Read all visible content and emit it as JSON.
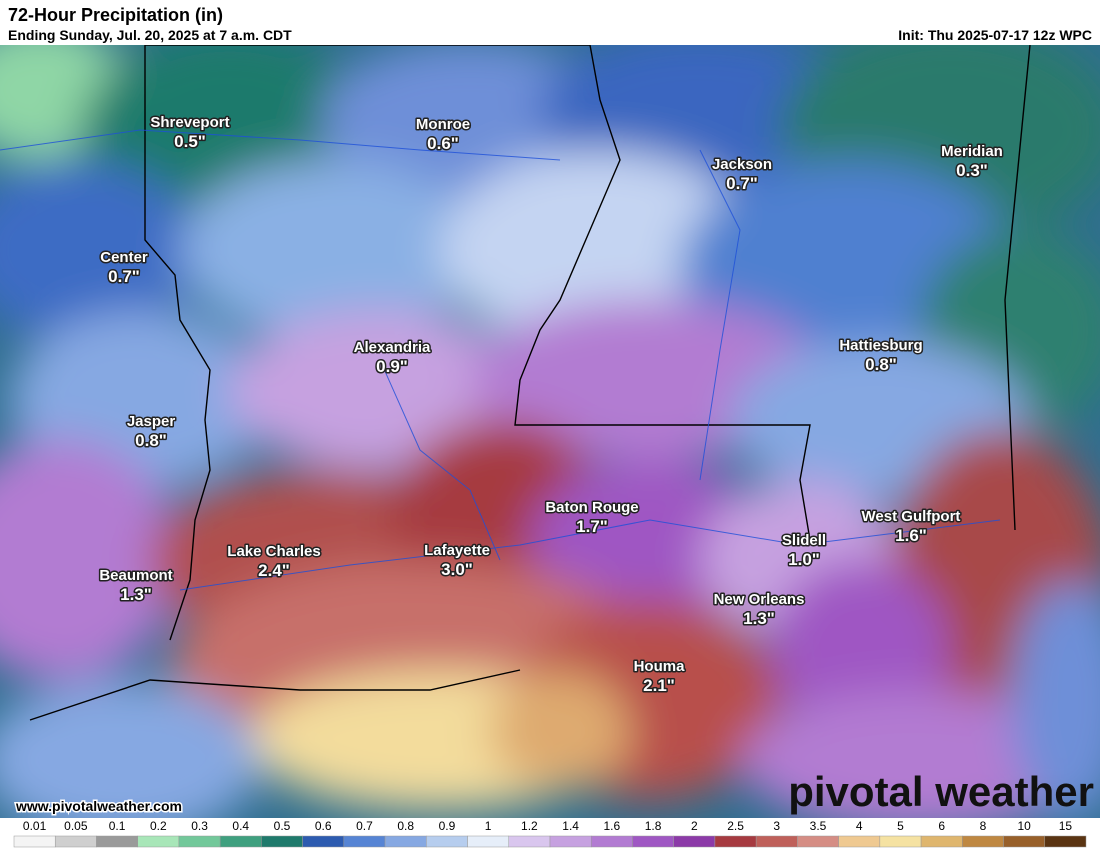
{
  "header": {
    "title": "72-Hour Precipitation (in)",
    "subtitle": "Ending Sunday, Jul. 20, 2025 at 7 a.m. CDT",
    "init": "Init: Thu 2025-07-17 12z WPC"
  },
  "cities": [
    {
      "name": "Shreveport",
      "value": "0.5\""
    },
    {
      "name": "Monroe",
      "value": "0.6\""
    },
    {
      "name": "Jackson",
      "value": "0.7\""
    },
    {
      "name": "Meridian",
      "value": "0.3\""
    },
    {
      "name": "Center",
      "value": "0.7\""
    },
    {
      "name": "Alexandria",
      "value": "0.9\""
    },
    {
      "name": "Hattiesburg",
      "value": "0.8\""
    },
    {
      "name": "Jasper",
      "value": "0.8\""
    },
    {
      "name": "Baton Rouge",
      "value": "1.7\""
    },
    {
      "name": "West Gulfport",
      "value": "1.6\""
    },
    {
      "name": "Slidell",
      "value": "1.0\""
    },
    {
      "name": "Lake Charles",
      "value": "2.4\""
    },
    {
      "name": "Lafayette",
      "value": "3.0\""
    },
    {
      "name": "Beaumont",
      "value": "1.3\""
    },
    {
      "name": "New Orleans",
      "value": "1.3\""
    },
    {
      "name": "Houma",
      "value": "2.1\""
    }
  ],
  "footer": {
    "website": "www.pivotalweather.com",
    "logo": "pivotal weather"
  },
  "colorbar": {
    "ticks": [
      0.01,
      0.05,
      0.1,
      0.2,
      0.3,
      0.4,
      0.5,
      0.6,
      0.7,
      0.8,
      0.9,
      1,
      1.2,
      1.4,
      1.6,
      1.8,
      2,
      2.5,
      3,
      3.5,
      4,
      5,
      6,
      8,
      10,
      15
    ],
    "colors": [
      "#f4f4f4",
      "#cfcfcf",
      "#9a9a9a",
      "#a8e6b8",
      "#72c89a",
      "#3fa07f",
      "#1f7a6c",
      "#2d5bb0",
      "#5684d4",
      "#86a8e2",
      "#b6cdee",
      "#e6eef9",
      "#d9c6ee",
      "#c6a1e0",
      "#b27bd2",
      "#9f57c3",
      "#8c3aa8",
      "#a63a40",
      "#bf605a",
      "#d58d84",
      "#efc991",
      "#f5e2a2",
      "#dfb66e",
      "#bf8842",
      "#98602a",
      "#5a3412"
    ]
  }
}
